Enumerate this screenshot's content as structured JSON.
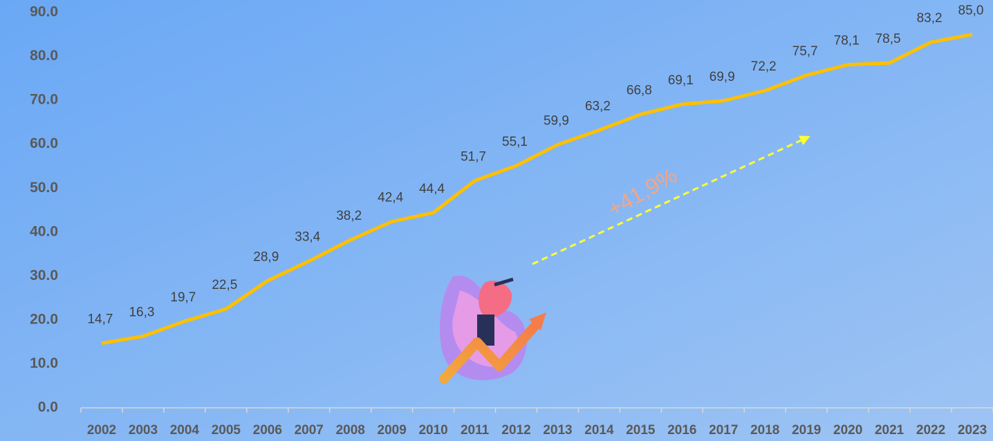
{
  "chart_data": {
    "type": "line",
    "categories": [
      "2002",
      "2003",
      "2004",
      "2005",
      "2006",
      "2007",
      "2008",
      "2009",
      "2010",
      "2011",
      "2012",
      "2013",
      "2014",
      "2015",
      "2016",
      "2017",
      "2018",
      "2019",
      "2020",
      "2021",
      "2022",
      "2023"
    ],
    "values": [
      14.7,
      16.3,
      19.7,
      22.5,
      28.9,
      33.4,
      38.2,
      42.4,
      44.4,
      51.7,
      55.1,
      59.9,
      63.2,
      66.8,
      69.1,
      69.9,
      72.2,
      75.7,
      78.1,
      78.5,
      83.2,
      85.0
    ],
    "value_labels": [
      "14,7",
      "16,3",
      "19,7",
      "22,5",
      "28,9",
      "33,4",
      "38,2",
      "42,4",
      "44,4",
      "51,7",
      "55,1",
      "59,9",
      "63,2",
      "66,8",
      "69,1",
      "69,9",
      "72,2",
      "75,7",
      "78,1",
      "78,5",
      "83,2",
      "85,0"
    ],
    "color": "#ffc000",
    "ylim": [
      0,
      90
    ],
    "yticks": [
      {
        "value": 0,
        "label": "0.0"
      },
      {
        "value": 10,
        "label": "10.0"
      },
      {
        "value": 20,
        "label": "20.0"
      },
      {
        "value": 30,
        "label": "30.0"
      },
      {
        "value": 40,
        "label": "40.0"
      },
      {
        "value": 50,
        "label": "50.0"
      },
      {
        "value": 60,
        "label": "60.0"
      },
      {
        "value": 70,
        "label": "70.0"
      },
      {
        "value": 80,
        "label": "80.0"
      },
      {
        "value": 90,
        "label": "90.0"
      }
    ],
    "grid": false,
    "annotation": "+41,9%"
  }
}
